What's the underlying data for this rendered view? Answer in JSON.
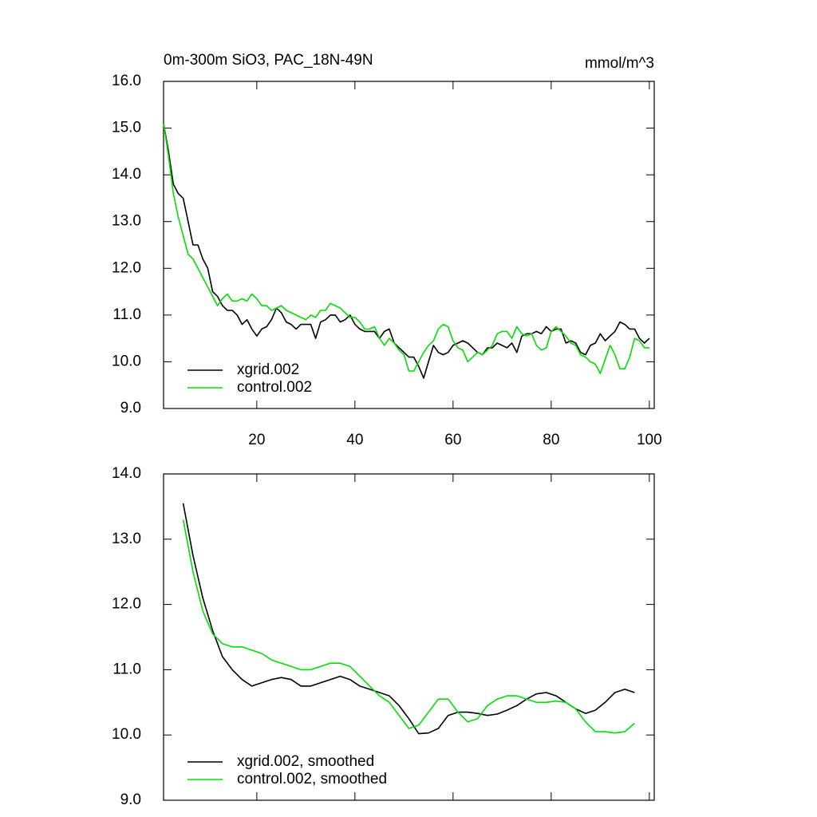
{
  "chart_data": [
    {
      "type": "line",
      "title": "0m-300m SiO3, PAC_18N-49N",
      "subtitle": "mmol/m^3",
      "x": [
        1,
        2,
        3,
        4,
        5,
        6,
        7,
        8,
        9,
        10,
        11,
        12,
        13,
        14,
        15,
        16,
        17,
        18,
        19,
        20,
        21,
        22,
        23,
        24,
        25,
        26,
        27,
        28,
        29,
        30,
        31,
        32,
        33,
        34,
        35,
        36,
        37,
        38,
        39,
        40,
        41,
        42,
        43,
        44,
        45,
        46,
        47,
        48,
        49,
        50,
        51,
        52,
        53,
        54,
        55,
        56,
        57,
        58,
        59,
        60,
        61,
        62,
        63,
        64,
        65,
        66,
        67,
        68,
        69,
        70,
        71,
        72,
        73,
        74,
        75,
        76,
        77,
        78,
        79,
        80,
        81,
        82,
        83,
        84,
        85,
        86,
        87,
        88,
        89,
        90,
        91,
        92,
        93,
        94,
        95,
        96,
        97,
        98,
        99,
        100
      ],
      "series": [
        {
          "name": "xgrid.002",
          "color": "#000000",
          "values": [
            15.1,
            14.5,
            13.8,
            13.6,
            13.5,
            13.0,
            12.5,
            12.5,
            12.2,
            12.0,
            11.5,
            11.4,
            11.2,
            11.1,
            11.1,
            11.0,
            10.8,
            10.9,
            10.7,
            10.55,
            10.7,
            10.75,
            10.9,
            11.15,
            11.05,
            10.85,
            10.8,
            10.7,
            10.8,
            10.8,
            10.8,
            10.5,
            10.85,
            10.9,
            11.0,
            11.0,
            10.85,
            10.9,
            11.0,
            10.8,
            10.7,
            10.65,
            10.65,
            10.65,
            10.5,
            10.65,
            10.7,
            10.4,
            10.3,
            10.2,
            10.1,
            10.1,
            9.9,
            9.65,
            10.0,
            10.35,
            10.2,
            10.15,
            10.2,
            10.35,
            10.4,
            10.45,
            10.4,
            10.3,
            10.2,
            10.15,
            10.3,
            10.3,
            10.4,
            10.35,
            10.3,
            10.4,
            10.2,
            10.55,
            10.6,
            10.6,
            10.65,
            10.6,
            10.75,
            10.65,
            10.7,
            10.7,
            10.4,
            10.45,
            10.4,
            10.2,
            10.15,
            10.35,
            10.4,
            10.6,
            10.45,
            10.55,
            10.65,
            10.85,
            10.8,
            10.7,
            10.7,
            10.5,
            10.4,
            10.5
          ]
        },
        {
          "name": "control.002",
          "color": "#00e000",
          "values": [
            15.1,
            14.4,
            13.6,
            13.1,
            12.7,
            12.3,
            12.2,
            12.0,
            11.8,
            11.6,
            11.4,
            11.2,
            11.35,
            11.45,
            11.3,
            11.3,
            11.35,
            11.3,
            11.45,
            11.35,
            11.2,
            11.2,
            11.1,
            11.15,
            11.2,
            11.1,
            11.05,
            11.0,
            10.95,
            10.9,
            11.0,
            10.95,
            11.1,
            11.1,
            11.25,
            11.2,
            11.15,
            11.05,
            10.95,
            10.95,
            10.85,
            10.7,
            10.7,
            10.75,
            10.5,
            10.35,
            10.5,
            10.4,
            10.25,
            10.15,
            9.8,
            9.8,
            10.0,
            10.2,
            10.35,
            10.45,
            10.7,
            10.8,
            10.75,
            10.45,
            10.3,
            10.25,
            10.0,
            10.1,
            10.2,
            10.15,
            10.25,
            10.35,
            10.6,
            10.65,
            10.65,
            10.5,
            10.75,
            10.6,
            10.55,
            10.6,
            10.35,
            10.25,
            10.3,
            10.65,
            10.75,
            10.65,
            10.55,
            10.4,
            10.35,
            10.15,
            10.1,
            10.0,
            9.95,
            9.75,
            10.05,
            10.35,
            10.15,
            9.85,
            9.85,
            10.1,
            10.5,
            10.45,
            10.3,
            10.3
          ]
        }
      ],
      "xlim": [
        1,
        101
      ],
      "xticks": [
        20,
        40,
        60,
        80,
        100
      ],
      "ylim": [
        9,
        16
      ],
      "yticks": [
        {
          "value": 9,
          "label": "9.0"
        },
        {
          "value": 10,
          "label": "10.0"
        },
        {
          "value": 11,
          "label": "11.0"
        },
        {
          "value": 12,
          "label": "12.0"
        },
        {
          "value": 13,
          "label": "13.0"
        },
        {
          "value": 14,
          "label": "14.0"
        },
        {
          "value": 15,
          "label": "15.0"
        },
        {
          "value": 16,
          "label": "16.0"
        }
      ],
      "legend": "lower left"
    },
    {
      "type": "line",
      "x": [
        5,
        7,
        9,
        11,
        13,
        15,
        17,
        19,
        21,
        23,
        25,
        27,
        29,
        31,
        33,
        35,
        37,
        39,
        41,
        43,
        45,
        47,
        49,
        51,
        53,
        55,
        57,
        59,
        61,
        63,
        65,
        67,
        69,
        71,
        73,
        75,
        77,
        79,
        81,
        83,
        85,
        87,
        89,
        91,
        93,
        95,
        97
      ],
      "series": [
        {
          "name": "xgrid.002, smoothed",
          "color": "#000000",
          "values": [
            13.55,
            12.75,
            12.1,
            11.6,
            11.2,
            11.0,
            10.85,
            10.75,
            10.8,
            10.85,
            10.88,
            10.85,
            10.75,
            10.75,
            10.8,
            10.85,
            10.9,
            10.85,
            10.75,
            10.7,
            10.65,
            10.6,
            10.45,
            10.25,
            10.02,
            10.03,
            10.1,
            10.3,
            10.35,
            10.35,
            10.33,
            10.3,
            10.32,
            10.38,
            10.45,
            10.55,
            10.63,
            10.65,
            10.6,
            10.5,
            10.4,
            10.33,
            10.38,
            10.5,
            10.65,
            10.7,
            10.65
          ]
        },
        {
          "name": "control.002, smoothed",
          "color": "#00e000",
          "values": [
            13.3,
            12.5,
            11.9,
            11.55,
            11.4,
            11.35,
            11.35,
            11.3,
            11.25,
            11.15,
            11.1,
            11.05,
            11.0,
            11.0,
            11.05,
            11.1,
            11.1,
            11.05,
            10.9,
            10.75,
            10.6,
            10.5,
            10.3,
            10.1,
            10.15,
            10.35,
            10.55,
            10.55,
            10.35,
            10.2,
            10.25,
            10.45,
            10.55,
            10.6,
            10.6,
            10.55,
            10.5,
            10.5,
            10.52,
            10.5,
            10.4,
            10.2,
            10.05,
            10.05,
            10.03,
            10.05,
            10.18
          ]
        }
      ],
      "xlim": [
        1,
        101
      ],
      "ylim": [
        9,
        14
      ],
      "yticks": [
        {
          "value": 9,
          "label": "9.0"
        },
        {
          "value": 10,
          "label": "10.0"
        },
        {
          "value": 11,
          "label": "11.0"
        },
        {
          "value": 12,
          "label": "12.0"
        },
        {
          "value": 13,
          "label": "13.0"
        },
        {
          "value": 14,
          "label": "14.0"
        }
      ],
      "legend": "lower left"
    }
  ]
}
